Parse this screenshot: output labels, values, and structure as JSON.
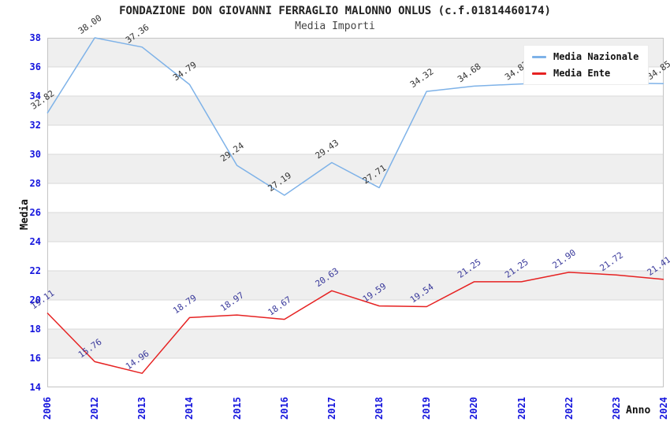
{
  "chart_data": {
    "type": "line",
    "title": "FONDAZIONE DON GIOVANNI FERRAGLIO MALONNO ONLUS (c.f.01814460174)",
    "subtitle": "Media Importi",
    "xlabel": "Anno",
    "ylabel": "Media",
    "categories": [
      "2006",
      "2012",
      "2013",
      "2014",
      "2015",
      "2016",
      "2017",
      "2018",
      "2019",
      "2020",
      "2021",
      "2022",
      "2023",
      "2024"
    ],
    "series": [
      {
        "name": "Media Nazionale",
        "color": "#7eb2e8",
        "label_color": "#333333",
        "values": [
          32.82,
          38.0,
          37.36,
          34.79,
          29.24,
          27.19,
          29.43,
          27.71,
          34.32,
          34.68,
          34.83,
          34.97,
          34.9,
          34.85
        ],
        "labels": [
          "32.82",
          "38.00",
          "37.36",
          "34.79",
          "29.24",
          "27.19",
          "29.43",
          "27.71",
          "34.32",
          "34.68",
          "34.83",
          "34.97",
          "34.90",
          "34.85"
        ]
      },
      {
        "name": "Media Ente",
        "color": "#e62222",
        "label_color": "#39399b",
        "values": [
          19.11,
          15.76,
          14.96,
          18.79,
          18.97,
          18.67,
          20.63,
          19.59,
          19.54,
          21.25,
          21.25,
          21.9,
          21.72,
          21.41
        ],
        "labels": [
          "19.11",
          "15.76",
          "14.96",
          "18.79",
          "18.97",
          "18.67",
          "20.63",
          "19.59",
          "19.54",
          "21.25",
          "21.25",
          "21.90",
          "21.72",
          "21.41"
        ]
      }
    ],
    "ylim": [
      14,
      38
    ],
    "ytick_step": 2,
    "ytick_labels": [
      "38",
      "36",
      "34",
      "32",
      "30",
      "28",
      "26",
      "24",
      "22",
      "20",
      "18",
      "16",
      "14"
    ],
    "grid": "banded",
    "band_color": "#efefef",
    "band_alt_color": "#ffffff",
    "gridline_color": "#d9d9d9",
    "plot_border_color": "#c4c4c4",
    "tick_label_color": "#1414dd",
    "legend_position": "top-right"
  }
}
